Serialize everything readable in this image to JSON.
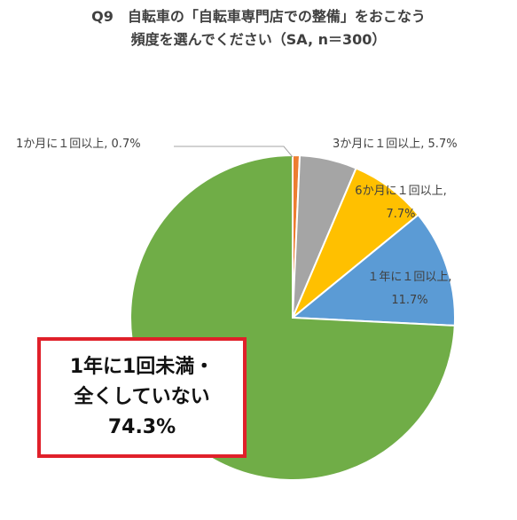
{
  "title": {
    "line1": "Q9　自転車の「自転車専門店での整備」をおこなう",
    "line2": "頻度を選んでください（SA, n＝300）"
  },
  "chart_data": {
    "type": "pie",
    "title": "Q9　自転車の「自転車専門店での整備」をおこなう頻度を選んでください（SA, n＝300）",
    "unit": "%",
    "slices": [
      {
        "label": "1か月に1回以上",
        "value": 0.7,
        "color": "#ed7d31",
        "display": "1か月に１回以上, 0.7%"
      },
      {
        "label": "3か月に1回以上",
        "value": 5.7,
        "color": "#a5a5a5",
        "display": "3か月に１回以上, 5.7%"
      },
      {
        "label": "6か月に1回以上",
        "value": 7.7,
        "color": "#ffc000",
        "display_lines": [
          "6か月に１回以上,",
          "7.7%"
        ]
      },
      {
        "label": "1年に1回以上",
        "value": 11.7,
        "color": "#5b9bd5",
        "display_lines": [
          "１年に１回以上,",
          "11.7%"
        ]
      },
      {
        "label": "1年に1回未満・全くしていない",
        "value": 74.3,
        "color": "#70ad47",
        "display_lines": [
          "1年に1回未満・",
          "全くしていない",
          "74.3%"
        ]
      }
    ]
  }
}
